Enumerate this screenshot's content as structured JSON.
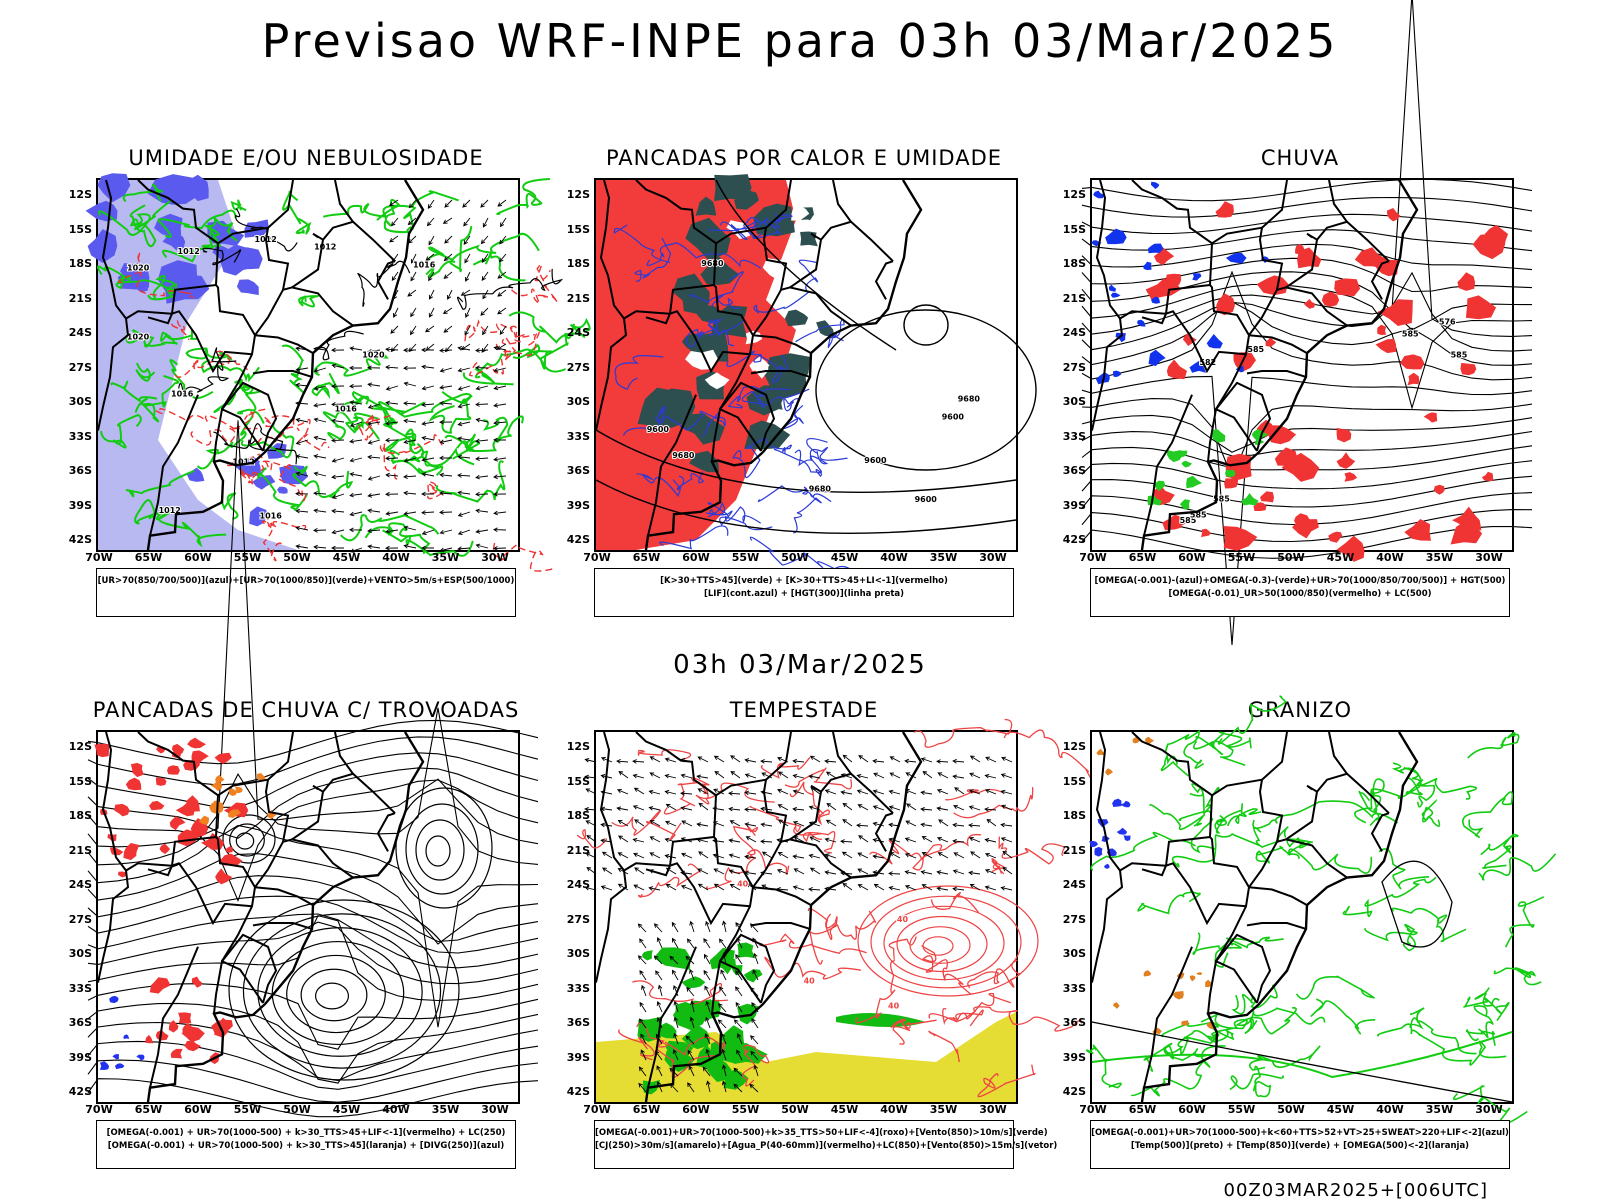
{
  "header": {
    "title": "Previsao WRF-INPE  para 03h 03/Mar/2025"
  },
  "middle_title": "03h 03/Mar/2025",
  "footer": "00Z03MAR2025+[006UTC]",
  "axes": {
    "lat_labels": [
      "12S",
      "15S",
      "18S",
      "21S",
      "24S",
      "27S",
      "30S",
      "33S",
      "36S",
      "39S",
      "42S"
    ],
    "lon_labels": [
      "70W",
      "65W",
      "60W",
      "55W",
      "50W",
      "45W",
      "40W",
      "35W",
      "30W"
    ]
  },
  "panels": [
    {
      "title": "UMIDADE E/OU NEBULOSIDADE",
      "legend": [
        "[UR>70(850/700/500)](azul)+[UR>70(1000/850)](verde)+VENTO>5m/s+ESP(500/1000)"
      ],
      "contour_labels": [
        "1012",
        "1012",
        "1016",
        "1016",
        "1012",
        "1020",
        "1020",
        "1016",
        "1016",
        "1012",
        "1020",
        "1012"
      ],
      "colors": {
        "blue": "#5a5aee",
        "lightblue": "#b9b9f2",
        "green": "#11cc11",
        "red": "#ee3333"
      }
    },
    {
      "title": "PANCADAS POR CALOR E UMIDADE",
      "legend": [
        "[K>30+TTS>45](verde) + [K>30+TTS>45+LI<-1](vermelho)",
        "[LIF](cont.azul) + [HGT(300)](linha preta)"
      ],
      "contour_labels": [
        "9600",
        "9600",
        "9680",
        "9680",
        "9680",
        "9600",
        "9680",
        "9600"
      ],
      "colors": {
        "red": "#f23b3b",
        "darkgreen": "#2e4f4f",
        "blue": "#2b3bd6"
      }
    },
    {
      "title": "CHUVA",
      "legend": [
        "[OMEGA(-0.001)-(azul)+OMEGA(-0.3)-(verde)+UR>70(1000/850/700/500)] + HGT(500)",
        "[OMEGA(-0.01)_UR>50(1000/850)(vermelho) + LC(500)"
      ],
      "contour_labels": [
        "585",
        "585",
        "585",
        "585",
        "585",
        "585",
        "576",
        "582"
      ],
      "colors": {
        "red": "#f03333",
        "blue": "#1133ee",
        "green": "#22cc22"
      }
    },
    {
      "title": "PANCADAS DE CHUVA C/ TROVOADAS",
      "legend": [
        "[OMEGA(-0.001) + UR>70(1000-500) + k>30_TTS>45+LIF<-1](vermelho) + LC(250)",
        "[OMEGA(-0.001) + UR>70(1000-500) + k>30_TTS>45](laranja) + [DIVG(250)](azul)"
      ],
      "colors": {
        "red": "#f03333",
        "orange": "#f08020",
        "blue": "#2233ee"
      }
    },
    {
      "title": "TEMPESTADE",
      "legend": [
        "[OMEGA(-0.001)+UR>70(1000-500)+k>35_TTS>50+LIF<-4](roxo)+[Vento(850)>10m/s](verde)",
        "[CJ(250)>30m/s](amarelo)+[Agua_P(40-60mm)](vermelho)+LC(850)+[Vento(850)>15m/s](vetor)"
      ],
      "contour_labels": [
        "40",
        "40",
        "40",
        "40"
      ],
      "colors": {
        "red": "#ee4444",
        "green": "#11bb11",
        "yellow": "#e5dd33"
      }
    },
    {
      "title": "GRANIZO",
      "legend": [
        "[OMEGA(-0.001)+UR>70(1000-500)+k<60+TTS>52+VT>25+SWEAT>220+LIF<-2](azul)",
        "[Temp(500)](preto) + [Temp(850)](verde) + [OMEGA(500)<-2](laranja)"
      ],
      "colors": {
        "green": "#11cc11",
        "blue": "#2233ee",
        "orange": "#e08020"
      }
    }
  ]
}
